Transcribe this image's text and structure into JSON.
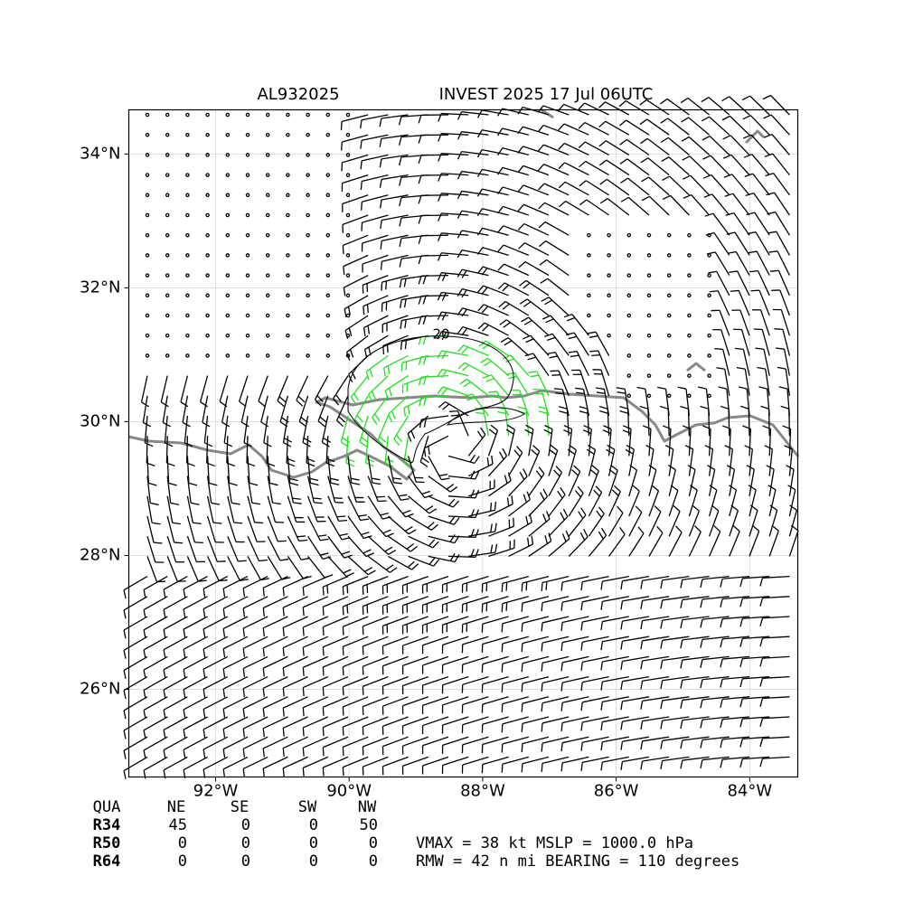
{
  "chart_data": {
    "type": "map",
    "title_left": "AL932025",
    "title": "INVEST 2025 17 Jul 06UTC",
    "xlim": [
      -93.3,
      -83.28
    ],
    "ylim": [
      24.69,
      34.66
    ],
    "xticks": [
      {
        "value": -92,
        "label": "92°W"
      },
      {
        "value": -90,
        "label": "90°W"
      },
      {
        "value": -88,
        "label": "88°W"
      },
      {
        "value": -86,
        "label": "86°W"
      },
      {
        "value": -84,
        "label": "84°W"
      }
    ],
    "yticks": [
      {
        "value": 26,
        "label": "26°N"
      },
      {
        "value": 28,
        "label": "28°N"
      },
      {
        "value": 30,
        "label": "30°N"
      },
      {
        "value": 32,
        "label": "32°N"
      },
      {
        "value": 34,
        "label": "34°N"
      }
    ],
    "grid": true,
    "contour_label": "20",
    "table": {
      "header": [
        "QUA",
        "NE",
        "SE",
        "SW",
        "NW"
      ],
      "rows": [
        [
          "R34",
          "45",
          "0",
          "0",
          "50"
        ],
        [
          "R50",
          "0",
          "0",
          "0",
          "0"
        ],
        [
          "R64",
          "0",
          "0",
          "0",
          "0"
        ]
      ]
    },
    "summary": [
      "VMAX =  38 kt MSLP = 1000.0 hPa",
      "RMW =  42 n mi BEARING = 110 degrees"
    ]
  }
}
